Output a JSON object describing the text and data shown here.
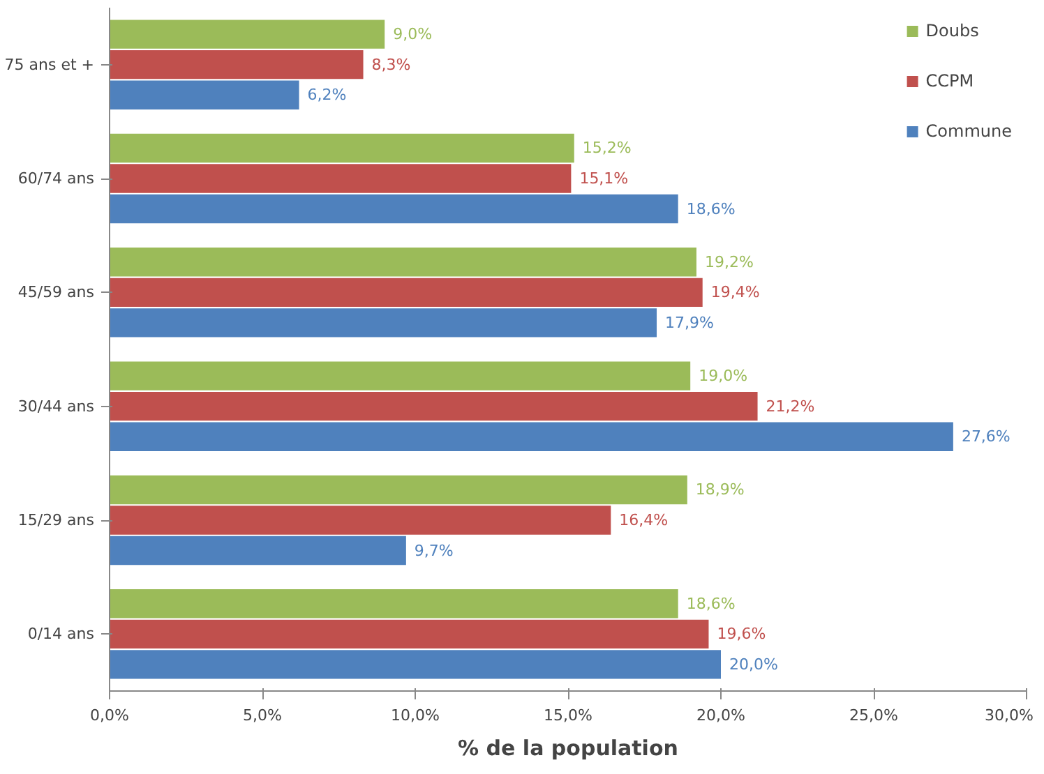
{
  "chart_data": {
    "type": "bar",
    "orientation": "horizontal",
    "xlabel": "% de la population",
    "categories": [
      "75 ans et +",
      "60/74 ans",
      "45/59 ans",
      "30/44 ans",
      "15/29 ans",
      "0/14 ans"
    ],
    "series": [
      {
        "name": "Doubs",
        "color": "#9bbb59",
        "values": [
          9.0,
          15.2,
          19.2,
          19.0,
          18.9,
          18.6
        ],
        "value_labels": [
          "9,0%",
          "15,2%",
          "19,2%",
          "19,0%",
          "18,9%",
          "18,6%"
        ]
      },
      {
        "name": "CCPM",
        "color": "#c0504d",
        "values": [
          8.3,
          15.1,
          19.4,
          21.2,
          16.4,
          19.6
        ],
        "value_labels": [
          "8,3%",
          "15,1%",
          "19,4%",
          "21,2%",
          "16,4%",
          "19,6%"
        ]
      },
      {
        "name": "Commune",
        "color": "#4f81bd",
        "values": [
          6.2,
          18.6,
          17.9,
          27.6,
          9.7,
          20.0
        ],
        "value_labels": [
          "6,2%",
          "18,6%",
          "17,9%",
          "27,6%",
          "9,7%",
          "20,0%"
        ]
      }
    ],
    "xlim": [
      0,
      30
    ],
    "xticks": [
      {
        "value": 0,
        "label": "0,0%"
      },
      {
        "value": 5,
        "label": "5,0%"
      },
      {
        "value": 10,
        "label": "10,0%"
      },
      {
        "value": 15,
        "label": "15,0%"
      },
      {
        "value": 20,
        "label": "20,0%"
      },
      {
        "value": 25,
        "label": "25,0%"
      },
      {
        "value": 30,
        "label": "30,0%"
      }
    ],
    "legend": "top right",
    "grid": false
  }
}
